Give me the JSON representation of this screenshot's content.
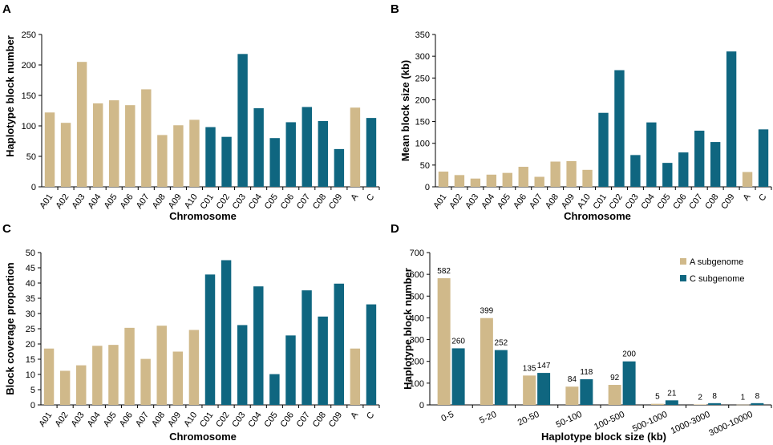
{
  "colors": {
    "A": "#d0b98a",
    "C": "#0f6680",
    "axis": "#000000"
  },
  "chart_data": [
    {
      "type": "bar",
      "panel": "A",
      "xlabel": "Chromosome",
      "ylabel": "Haplotype block number",
      "ylim": [
        0,
        250
      ],
      "yticks": [
        0,
        50,
        100,
        150,
        200,
        250
      ],
      "categories": [
        "A01",
        "A02",
        "A03",
        "A04",
        "A05",
        "A06",
        "A07",
        "A08",
        "A09",
        "A10",
        "C01",
        "C02",
        "C03",
        "C04",
        "C05",
        "C06",
        "C07",
        "C08",
        "C09",
        "A",
        "C"
      ],
      "values": [
        122,
        105,
        205,
        137,
        142,
        134,
        160,
        85,
        101,
        110,
        98,
        82,
        218,
        129,
        80,
        106,
        131,
        108,
        62,
        130,
        113
      ],
      "groups": [
        "A",
        "A",
        "A",
        "A",
        "A",
        "A",
        "A",
        "A",
        "A",
        "A",
        "C",
        "C",
        "C",
        "C",
        "C",
        "C",
        "C",
        "C",
        "C",
        "A",
        "C"
      ]
    },
    {
      "type": "bar",
      "panel": "B",
      "xlabel": "Chromosome",
      "ylabel": "Mean block size (kb)",
      "ylim": [
        0,
        350
      ],
      "yticks": [
        0,
        50,
        100,
        150,
        200,
        250,
        300,
        350
      ],
      "categories": [
        "A01",
        "A02",
        "A03",
        "A04",
        "A05",
        "A06",
        "A07",
        "A08",
        "A09",
        "A10",
        "C01",
        "C02",
        "C03",
        "C04",
        "C05",
        "C06",
        "C07",
        "C08",
        "C09",
        "A",
        "C"
      ],
      "values": [
        35,
        27,
        19,
        28,
        32,
        46,
        23,
        58,
        59,
        39,
        170,
        268,
        73,
        148,
        55,
        79,
        129,
        103,
        311,
        34,
        132
      ],
      "groups": [
        "A",
        "A",
        "A",
        "A",
        "A",
        "A",
        "A",
        "A",
        "A",
        "A",
        "C",
        "C",
        "C",
        "C",
        "C",
        "C",
        "C",
        "C",
        "C",
        "A",
        "C"
      ]
    },
    {
      "type": "bar",
      "panel": "C",
      "xlabel": "Chromosome",
      "ylabel": "Block coverage proportion",
      "ylim": [
        0,
        50
      ],
      "yticks": [
        0,
        5,
        10,
        15,
        20,
        25,
        30,
        35,
        40,
        45,
        50
      ],
      "categories": [
        "A01",
        "A02",
        "A03",
        "A04",
        "A05",
        "A06",
        "A07",
        "A08",
        "A09",
        "A10",
        "C01",
        "C02",
        "C03",
        "C04",
        "C05",
        "C06",
        "C07",
        "C08",
        "C09",
        "A",
        "C"
      ],
      "values": [
        18.5,
        11.2,
        13,
        19.4,
        19.7,
        25.3,
        15.1,
        26,
        17.5,
        24.6,
        42.8,
        47.5,
        26.2,
        38.9,
        10.1,
        22.8,
        37.6,
        29,
        39.8,
        18.5,
        33
      ],
      "groups": [
        "A",
        "A",
        "A",
        "A",
        "A",
        "A",
        "A",
        "A",
        "A",
        "A",
        "C",
        "C",
        "C",
        "C",
        "C",
        "C",
        "C",
        "C",
        "C",
        "A",
        "C"
      ]
    },
    {
      "type": "bar",
      "panel": "D",
      "xlabel": "Haplotype block size (kb)",
      "ylabel": "Haplotype block number",
      "ylim": [
        0,
        700
      ],
      "yticks": [
        0,
        100,
        200,
        300,
        400,
        500,
        600,
        700
      ],
      "categories": [
        "0-5",
        "5-20",
        "20-50",
        "50-100",
        "100-500",
        "500-1000",
        "1000-3000",
        "3000-10000"
      ],
      "series": [
        {
          "name": "A subgenome",
          "group": "A",
          "values": [
            582,
            399,
            135,
            84,
            92,
            5,
            2,
            1
          ]
        },
        {
          "name": "C subgenome",
          "group": "C",
          "values": [
            260,
            252,
            147,
            118,
            200,
            21,
            8,
            8
          ]
        }
      ],
      "legend": [
        "A subgenome",
        "C subgenome"
      ],
      "legend_position": "top-right"
    }
  ]
}
